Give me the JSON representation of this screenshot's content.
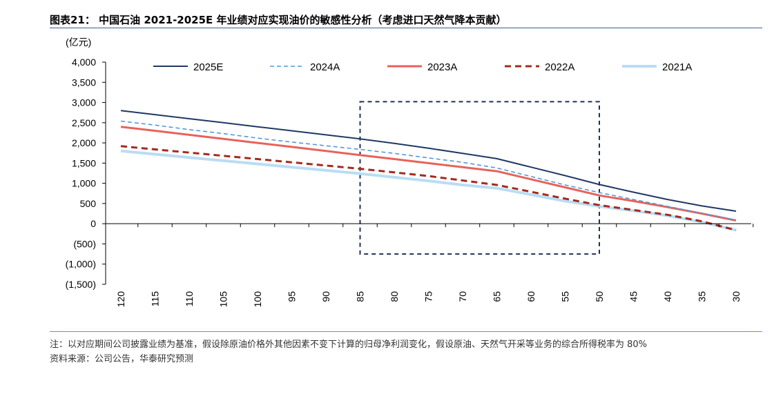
{
  "title": "图表21：  中国石油 2021-2025E 年业绩对应实现油价的敏感性分析（考虑进口天然气降本贡献）",
  "note": "注：以对应期间公司披露业绩为基准，假设除原油价格外其他因素不变下计算的归母净利润变化，假设原油、天然气开采等业务的综合所得税率为 80%",
  "source": "资料来源：公司公告，华泰研究预测",
  "chart_data": {
    "type": "line",
    "ylabel": "(亿元)",
    "xlabel": "",
    "ylim": [
      -1500,
      4000
    ],
    "yticks": [
      4000,
      3500,
      3000,
      2500,
      2000,
      1500,
      1000,
      500,
      0,
      -500,
      -1000,
      -1500
    ],
    "ytick_labels": [
      "4,000",
      "3,500",
      "3,000",
      "2,500",
      "2,000",
      "1,500",
      "1,000",
      "500",
      "0",
      "(500)",
      "(1,000)",
      "(1,500)"
    ],
    "categories": [
      "120",
      "115",
      "110",
      "105",
      "100",
      "95",
      "90",
      "85",
      "80",
      "75",
      "70",
      "65",
      "60",
      "55",
      "50",
      "45",
      "40",
      "35",
      "30"
    ],
    "legend_position": "top",
    "highlight": {
      "from": "85",
      "to": "50",
      "ymin": -750,
      "ymax": 3020
    },
    "series": [
      {
        "name": "2025E",
        "color": "#1f3864",
        "dash": "solid",
        "width": 2,
        "values": [
          2800,
          2700,
          2600,
          2500,
          2400,
          2300,
          2200,
          2100,
          1990,
          1870,
          1740,
          1610,
          1400,
          1190,
          970,
          780,
          600,
          440,
          310
        ]
      },
      {
        "name": "2024A",
        "color": "#4f9ad8",
        "dash": "dashed",
        "width": 1.6,
        "values": [
          2540,
          2440,
          2330,
          2230,
          2120,
          2020,
          1930,
          1840,
          1740,
          1630,
          1520,
          1380,
          1170,
          960,
          770,
          600,
          430,
          260,
          90
        ]
      },
      {
        "name": "2023A",
        "color": "#e8625a",
        "dash": "solid",
        "width": 3,
        "values": [
          2400,
          2300,
          2200,
          2100,
          2000,
          1900,
          1800,
          1700,
          1600,
          1500,
          1400,
          1300,
          1100,
          900,
          700,
          560,
          410,
          250,
          80
        ]
      },
      {
        "name": "2022A",
        "color": "#a32a1e",
        "dash": "dashed",
        "width": 3,
        "values": [
          1920,
          1840,
          1760,
          1680,
          1600,
          1520,
          1440,
          1360,
          1270,
          1180,
          1070,
          960,
          790,
          620,
          460,
          340,
          220,
          60,
          -160
        ]
      },
      {
        "name": "2021A",
        "color": "#b9ddf3",
        "dash": "solid",
        "width": 4,
        "values": [
          1800,
          1720,
          1640,
          1560,
          1480,
          1400,
          1320,
          1240,
          1150,
          1060,
          960,
          880,
          720,
          560,
          430,
          320,
          200,
          40,
          -160
        ]
      }
    ]
  }
}
